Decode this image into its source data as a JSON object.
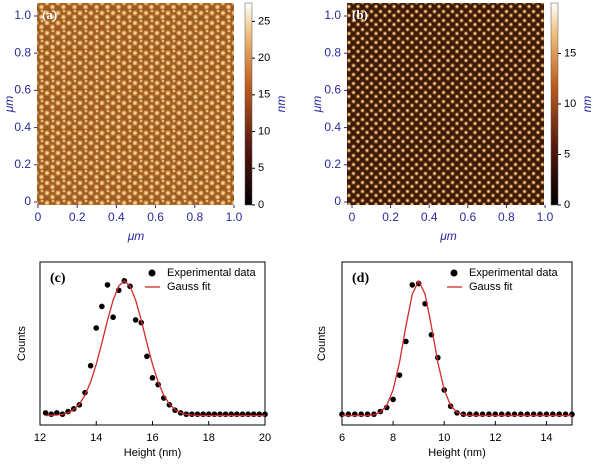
{
  "chart_data": [
    {
      "type": "image",
      "label": "(a)",
      "xlabel": "μm",
      "ylabel": "μm",
      "xlim": [
        0,
        1
      ],
      "ylim": [
        0,
        1
      ],
      "xticks": [
        0,
        0.2,
        0.4,
        0.6,
        0.8,
        {
          "value": 1,
          "label": "1.0"
        }
      ],
      "yticks": [
        0,
        0.2,
        0.4,
        0.6,
        0.8,
        {
          "value": 1,
          "label": "1.0"
        }
      ],
      "colorbar": {
        "label": "nm",
        "lim": [
          0,
          27.5
        ],
        "ticks": [
          0,
          5,
          10,
          15,
          20,
          25
        ]
      }
    },
    {
      "type": "image",
      "label": "(b)",
      "xlabel": "μm",
      "ylabel": "μm",
      "xlim": [
        0,
        1
      ],
      "ylim": [
        0,
        1
      ],
      "xticks": [
        0,
        0.2,
        0.4,
        0.6,
        0.8,
        {
          "value": 1,
          "label": "1.0"
        }
      ],
      "yticks": [
        0,
        0.2,
        0.4,
        0.6,
        0.8,
        {
          "value": 1,
          "label": "1.0"
        }
      ],
      "colorbar": {
        "label": "nm",
        "lim": [
          0,
          20
        ],
        "ticks": [
          0,
          5,
          10,
          15
        ]
      }
    },
    {
      "type": "scatter",
      "label": "(c)",
      "xlabel": "Height (nm)",
      "ylabel": "Counts",
      "xlim": [
        12,
        20
      ],
      "ylim": [
        -0.07,
        1.14
      ],
      "xticks": [
        12,
        14,
        16,
        18,
        20
      ],
      "x": [
        12.2,
        12.4,
        12.6,
        12.8,
        13.0,
        13.2,
        13.4,
        13.6,
        13.8,
        14.0,
        14.2,
        14.4,
        14.6,
        14.8,
        15.0,
        15.2,
        15.4,
        15.6,
        15.8,
        16.0,
        16.2,
        16.4,
        16.6,
        16.8,
        17.0,
        17.2,
        17.4,
        17.6,
        17.8,
        18.0,
        18.2,
        18.4,
        18.6,
        18.8,
        19.0,
        19.2,
        19.4,
        19.6,
        19.8,
        20.0
      ],
      "series": [
        {
          "name": "Experimental data",
          "color": "#000000",
          "style": "markers",
          "values": [
            0.02,
            0.01,
            0.02,
            0.01,
            0.03,
            0.05,
            0.08,
            0.17,
            0.37,
            0.65,
            0.81,
            0.97,
            0.73,
            0.93,
            1.0,
            0.96,
            0.71,
            0.69,
            0.44,
            0.28,
            0.23,
            0.13,
            0.08,
            0.04,
            0.02,
            0.01,
            0.01,
            0.01,
            0.01,
            0.01,
            0.01,
            0.01,
            0.01,
            0.01,
            0.01,
            0.01,
            0.01,
            0.01,
            0.01,
            0.01
          ]
        },
        {
          "name": "Gauss fit",
          "color": "#d42a2a",
          "style": "line",
          "values": [
            0,
            0.001,
            0.004,
            0.009,
            0.021,
            0.044,
            0.085,
            0.151,
            0.249,
            0.381,
            0.539,
            0.707,
            0.857,
            0.962,
            1,
            0.962,
            0.857,
            0.707,
            0.539,
            0.381,
            0.249,
            0.151,
            0.085,
            0.044,
            0.021,
            0.009,
            0.004,
            0.001,
            0,
            0,
            0,
            0,
            0,
            0,
            0,
            0,
            0,
            0,
            0,
            0
          ]
        }
      ]
    },
    {
      "type": "scatter",
      "label": "(d)",
      "xlabel": "Height (nm)",
      "ylabel": "Counts",
      "xlim": [
        6,
        15
      ],
      "ylim": [
        -0.07,
        1.14
      ],
      "xticks": [
        6,
        8,
        10,
        12,
        14
      ],
      "x": [
        6.0,
        6.25,
        6.5,
        6.75,
        7.0,
        7.25,
        7.5,
        7.75,
        8.0,
        8.25,
        8.5,
        8.75,
        9.0,
        9.25,
        9.5,
        9.75,
        10.0,
        10.25,
        10.5,
        10.75,
        11.0,
        11.25,
        11.5,
        11.75,
        12.0,
        12.25,
        12.5,
        12.75,
        13.0,
        13.25,
        13.5,
        13.75,
        14.0,
        14.25,
        14.5,
        14.75,
        15.0
      ],
      "series": [
        {
          "name": "Experimental data",
          "color": "#000000",
          "style": "markers",
          "values": [
            0.01,
            0.01,
            0.01,
            0.01,
            0.01,
            0.01,
            0.03,
            0.06,
            0.12,
            0.3,
            0.55,
            0.97,
            0.98,
            0.83,
            0.6,
            0.43,
            0.19,
            0.07,
            0.02,
            0.01,
            0.01,
            0.01,
            0.01,
            0.01,
            0.01,
            0.01,
            0.01,
            0.01,
            0.01,
            0.01,
            0.01,
            0.01,
            0.01,
            0.01,
            0.01,
            0.01,
            0.01
          ]
        },
        {
          "name": "Gauss fit",
          "color": "#d42a2a",
          "style": "line",
          "values": [
            0,
            0,
            0,
            0,
            0.001,
            0.006,
            0.024,
            0.075,
            0.191,
            0.395,
            0.662,
            0.902,
            1,
            0.902,
            0.662,
            0.395,
            0.191,
            0.075,
            0.024,
            0.006,
            0.001,
            0,
            0,
            0,
            0,
            0,
            0,
            0,
            0,
            0,
            0,
            0,
            0,
            0,
            0,
            0,
            0
          ]
        }
      ]
    }
  ]
}
